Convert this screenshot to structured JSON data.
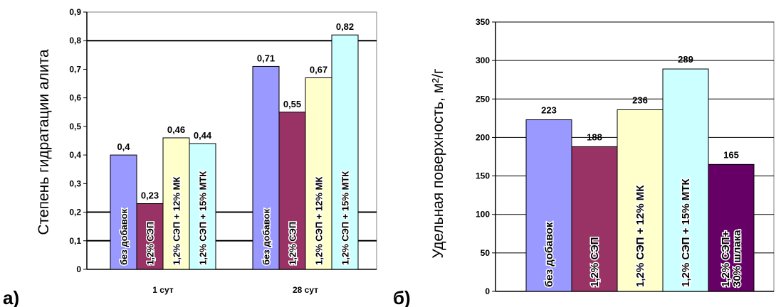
{
  "figure": {
    "panel_a_letter": "а)",
    "panel_b_letter": "б)"
  },
  "colors": {
    "bez_dobavok": "#9999ff",
    "sep": "#993366",
    "sep_mk": "#ffffcc",
    "sep_mtk": "#ccffff",
    "sep_shlak": "#660066",
    "grid": "#000000",
    "frame": "#808080"
  },
  "chart_data": [
    {
      "id": "a",
      "type": "bar",
      "ylabel": "Степень гидратации алита",
      "xlabel": "",
      "ylim": [
        0,
        0.9
      ],
      "yticks": [
        "0",
        "0,1",
        "0,2",
        "0,3",
        "0,4",
        "0,5",
        "0,6",
        "0,7",
        "0,8",
        "0,9"
      ],
      "categories": [
        "1 сут",
        "28 сут"
      ],
      "grid": "horizontal lines at 0,1; 0,2; 0,8",
      "legend": "labels inside bars",
      "series": [
        {
          "name": "без добавок",
          "values": [
            0.4,
            0.71
          ],
          "labels": [
            "0,4",
            "0,71"
          ]
        },
        {
          "name": "1,2% СЭП",
          "values": [
            0.23,
            0.55
          ],
          "labels": [
            "0,23",
            "0,55"
          ]
        },
        {
          "name": "1,2% СЭП + 12% МК",
          "values": [
            0.46,
            0.67
          ],
          "labels": [
            "0,46",
            "0,67"
          ]
        },
        {
          "name": "1,2% СЭП + 15% МТК",
          "values": [
            0.44,
            0.82
          ],
          "labels": [
            "0,44",
            "0,82"
          ]
        }
      ]
    },
    {
      "id": "b",
      "type": "bar",
      "ylabel": "Удельная поверхность, м²/г",
      "xlabel": "",
      "ylim": [
        0,
        350
      ],
      "yticks": [
        "0",
        "50",
        "100",
        "150",
        "200",
        "250",
        "300",
        "350"
      ],
      "categories": [
        ""
      ],
      "grid": "horizontal lines at every 50",
      "legend": "labels inside bars",
      "series": [
        {
          "name": "без добавок",
          "values": [
            223
          ],
          "labels": [
            "223"
          ]
        },
        {
          "name": "1,2% СЭП",
          "values": [
            188
          ],
          "labels": [
            "188"
          ]
        },
        {
          "name": "1,2% СЭП + 12% МК",
          "values": [
            236
          ],
          "labels": [
            "236"
          ]
        },
        {
          "name": "1,2% СЭП + 15% МТК",
          "values": [
            289
          ],
          "labels": [
            "289"
          ]
        },
        {
          "name_lines": [
            "1,2% СЭП+",
            "30% шлака"
          ],
          "values": [
            165
          ],
          "labels": [
            "165"
          ]
        }
      ]
    }
  ]
}
